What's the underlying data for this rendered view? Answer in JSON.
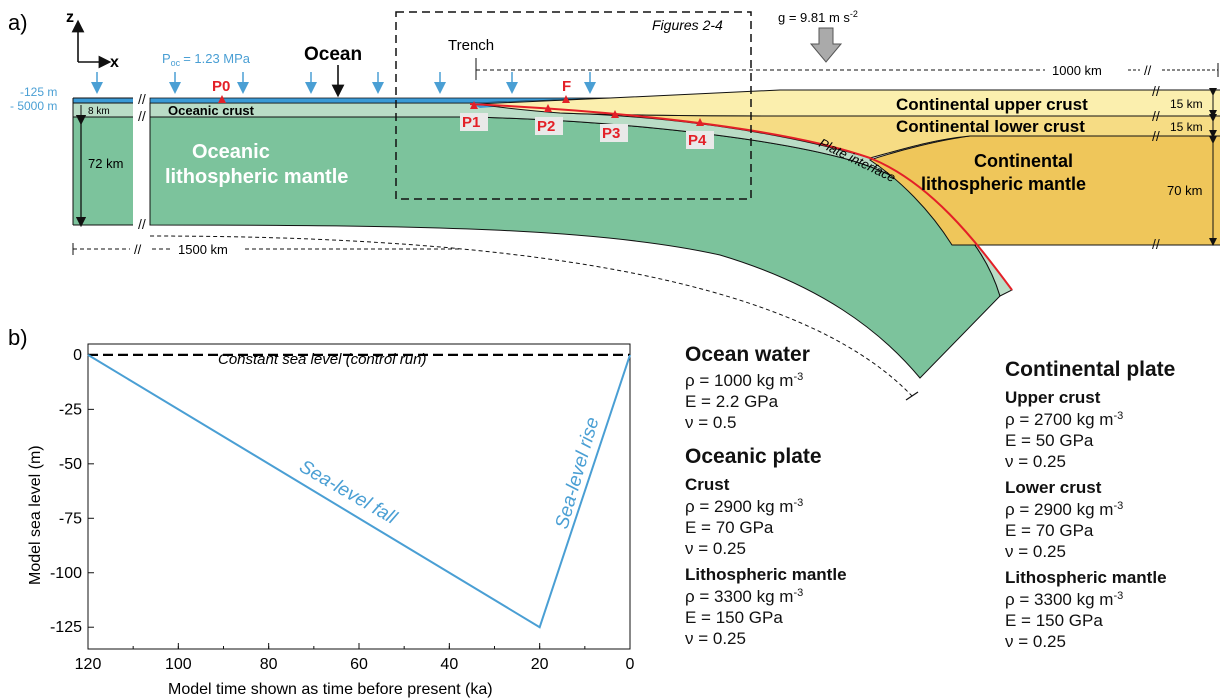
{
  "panel_a": {
    "label": "a)",
    "axis_z": "z",
    "axis_x": "x",
    "ocean_title": "Ocean",
    "p_oc_main": "P",
    "p_oc_sub": "oc",
    "p_oc_value": "= 1.23 MPa",
    "depth_top": "-125 m",
    "depth_bottom": "- 5000 m",
    "oceanic_crust": "Oceanic crust",
    "crust_thickness": "8 km",
    "mantle_thickness": "72 km",
    "oceanic_mantle_line1": "Oceanic",
    "oceanic_mantle_line2": "lithospheric mantle",
    "figures_box": "Figures 2-4",
    "trench": "Trench",
    "gravity": "g = 9.81 m s",
    "gravity_exp": "-2",
    "distance_right": "1000 km",
    "distance_left": "1500 km",
    "break_symbol": "//",
    "points": [
      "P0",
      "F",
      "P1",
      "P2",
      "P3",
      "P4"
    ],
    "upper_crust": "Continental upper crust",
    "lower_crust": "Continental lower crust",
    "upper_thickness": "15 km",
    "lower_thickness": "15 km",
    "cont_mantle_line1": "Continental",
    "cont_mantle_line2": "lithospheric mantle",
    "cont_mantle_thickness": "70 km",
    "plate_interface": "Plate interface"
  },
  "panel_b": {
    "label": "b)",
    "ylabel": "Model sea level (m)",
    "xlabel": "Model time shown as time before present (ka)",
    "control_label": "Constant sea level (control run)",
    "fall_label": "Sea-level fall",
    "rise_label": "Sea-level rise"
  },
  "chart_data": {
    "type": "line",
    "title": "",
    "xlabel": "Model time shown as time before present (ka)",
    "ylabel": "Model sea level (m)",
    "xlim": [
      120,
      0
    ],
    "ylim": [
      -135,
      5
    ],
    "x_ticks": [
      120,
      100,
      80,
      60,
      40,
      20,
      0
    ],
    "y_ticks": [
      0,
      -25,
      -50,
      -75,
      -100,
      -125
    ],
    "series": [
      {
        "name": "Constant sea level (control run)",
        "style": "dashed",
        "color": "#000000",
        "x": [
          120,
          0
        ],
        "y": [
          0,
          0
        ]
      },
      {
        "name": "",
        "style": "solid",
        "color": "#4a9fd4",
        "x": [
          120,
          20,
          0
        ],
        "y": [
          0,
          -125,
          0
        ]
      }
    ],
    "annotations": [
      "Sea-level fall",
      "Sea-level rise"
    ]
  },
  "properties": {
    "ocean_water": {
      "title": "Ocean water",
      "rho": "ρ  = 1000 kg m",
      "rho_exp": "-3",
      "E": "E = 2.2 GPa",
      "nu": "ν  = 0.5"
    },
    "oceanic_plate": {
      "title": "Oceanic plate",
      "crust": {
        "title": "Crust",
        "rho": "ρ  = 2900 kg m",
        "rho_exp": "-3",
        "E": "E = 70 GPa",
        "nu": "ν  = 0.25"
      },
      "mantle": {
        "title": "Lithospheric mantle",
        "rho": "ρ  = 3300 kg m",
        "rho_exp": "-3",
        "E": "E = 150 GPa",
        "nu": "ν  = 0.25"
      }
    },
    "continental_plate": {
      "title": "Continental plate",
      "upper": {
        "title": "Upper crust",
        "rho": "ρ  = 2700 kg m",
        "rho_exp": "-3",
        "E": "E = 50 GPa",
        "nu": "ν  = 0.25"
      },
      "lower": {
        "title": "Lower crust",
        "rho": "ρ  = 2900 kg m",
        "rho_exp": "-3",
        "E": "E = 70 GPa",
        "nu": "ν  = 0.25"
      },
      "mantle": {
        "title": "Lithospheric mantle",
        "rho": "ρ  = 3300 kg m",
        "rho_exp": "-3",
        "E": "E = 150 GPa",
        "nu": "ν  = 0.25"
      }
    }
  },
  "colors": {
    "ocean_water": "#3a9ad6",
    "oceanic_crust": "#b9dcc6",
    "oceanic_mantle": "#7cc39c",
    "upper_crust": "#fbefae",
    "lower_crust": "#f6dc84",
    "cont_mantle": "#efc65a",
    "accent_blue": "#4a9fd4",
    "marker_red": "#e32028",
    "interface_red": "#e32028"
  }
}
